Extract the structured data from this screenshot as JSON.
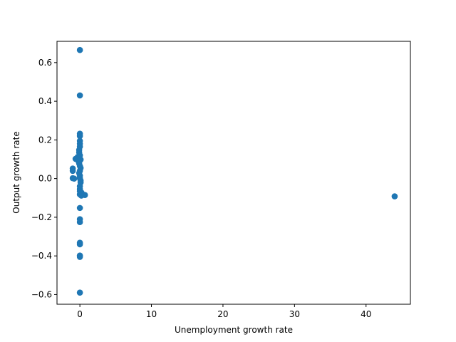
{
  "chart_data": {
    "type": "scatter",
    "title": "",
    "xlabel": "Unemployment growth rate",
    "ylabel": "Output growth rate",
    "xlim": [
      -3.2,
      46.2
    ],
    "ylim": [
      -0.65,
      0.71
    ],
    "xticks": [
      0,
      10,
      20,
      30,
      40
    ],
    "yticks": [
      -0.6,
      -0.4,
      -0.2,
      0.0,
      0.2,
      0.4,
      0.6
    ],
    "xtick_labels": [
      "0",
      "10",
      "20",
      "30",
      "40"
    ],
    "ytick_labels": [
      "−0.6",
      "−0.4",
      "−0.2",
      "0.0",
      "0.2",
      "0.4",
      "0.6"
    ],
    "grid": false,
    "marker_color": "#1f77b4",
    "points": [
      {
        "x": 0.0,
        "y": 0.665
      },
      {
        "x": 0.0,
        "y": 0.43
      },
      {
        "x": 0.0,
        "y": 0.232
      },
      {
        "x": 0.0,
        "y": 0.22
      },
      {
        "x": 0.0,
        "y": 0.195
      },
      {
        "x": 0.0,
        "y": 0.18
      },
      {
        "x": 0.0,
        "y": 0.165
      },
      {
        "x": -0.1,
        "y": 0.148
      },
      {
        "x": -0.1,
        "y": 0.135
      },
      {
        "x": 0.0,
        "y": 0.12
      },
      {
        "x": -0.3,
        "y": 0.112
      },
      {
        "x": -0.6,
        "y": 0.102
      },
      {
        "x": 0.1,
        "y": 0.098
      },
      {
        "x": -0.2,
        "y": 0.09
      },
      {
        "x": -0.1,
        "y": 0.078
      },
      {
        "x": 0.0,
        "y": 0.065
      },
      {
        "x": 0.1,
        "y": 0.055
      },
      {
        "x": -1.0,
        "y": 0.052
      },
      {
        "x": -1.0,
        "y": 0.04
      },
      {
        "x": 0.0,
        "y": 0.04
      },
      {
        "x": -0.1,
        "y": 0.028
      },
      {
        "x": 0.0,
        "y": 0.015
      },
      {
        "x": -1.0,
        "y": 0.002
      },
      {
        "x": -0.8,
        "y": 0.0
      },
      {
        "x": 0.0,
        "y": 0.002
      },
      {
        "x": 0.1,
        "y": -0.01
      },
      {
        "x": 0.1,
        "y": -0.02
      },
      {
        "x": 0.0,
        "y": -0.04
      },
      {
        "x": 0.0,
        "y": -0.055
      },
      {
        "x": 0.0,
        "y": -0.065
      },
      {
        "x": 0.2,
        "y": -0.072
      },
      {
        "x": 0.3,
        "y": -0.078
      },
      {
        "x": 0.0,
        "y": -0.082
      },
      {
        "x": 0.7,
        "y": -0.085
      },
      {
        "x": 0.2,
        "y": -0.088
      },
      {
        "x": 0.0,
        "y": -0.152
      },
      {
        "x": 0.0,
        "y": -0.21
      },
      {
        "x": 0.0,
        "y": -0.225
      },
      {
        "x": 0.0,
        "y": -0.332
      },
      {
        "x": 0.0,
        "y": -0.34
      },
      {
        "x": 0.0,
        "y": -0.398
      },
      {
        "x": 0.0,
        "y": -0.405
      },
      {
        "x": 0.0,
        "y": -0.59
      },
      {
        "x": 44.0,
        "y": -0.092
      }
    ]
  }
}
